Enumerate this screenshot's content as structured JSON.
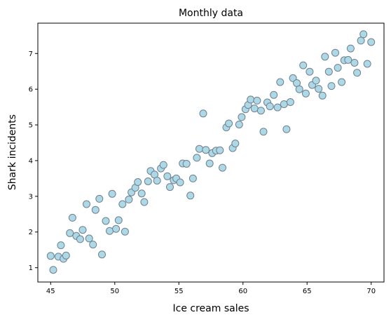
{
  "chart_data": {
    "type": "scatter",
    "title": "Monthly data",
    "xlabel": "Ice cream sales",
    "ylabel": "Shark incidents",
    "xlim": [
      44,
      71
    ],
    "ylim": [
      0.6,
      7.85
    ],
    "xticks": [
      45,
      50,
      55,
      60,
      65,
      70
    ],
    "yticks": [
      1,
      2,
      3,
      4,
      5,
      6,
      7
    ],
    "grid": false,
    "marker_fill": "#add8e6",
    "marker_edge": "#708090",
    "points": [
      [
        45.0,
        1.33
      ],
      [
        45.2,
        0.94
      ],
      [
        45.6,
        1.31
      ],
      [
        45.8,
        1.63
      ],
      [
        46.0,
        1.25
      ],
      [
        46.2,
        1.34
      ],
      [
        46.5,
        1.97
      ],
      [
        46.7,
        2.4
      ],
      [
        47.0,
        1.89
      ],
      [
        47.3,
        1.8
      ],
      [
        47.5,
        2.06
      ],
      [
        47.8,
        2.78
      ],
      [
        48.0,
        1.82
      ],
      [
        48.3,
        1.65
      ],
      [
        48.5,
        2.62
      ],
      [
        48.8,
        2.93
      ],
      [
        49.0,
        1.37
      ],
      [
        49.3,
        2.31
      ],
      [
        49.6,
        2.03
      ],
      [
        49.8,
        3.07
      ],
      [
        50.1,
        2.09
      ],
      [
        50.3,
        2.33
      ],
      [
        50.6,
        2.78
      ],
      [
        50.8,
        2.01
      ],
      [
        51.1,
        2.91
      ],
      [
        51.3,
        3.11
      ],
      [
        51.6,
        3.24
      ],
      [
        51.8,
        3.4
      ],
      [
        52.1,
        3.08
      ],
      [
        52.3,
        2.84
      ],
      [
        52.6,
        3.42
      ],
      [
        52.8,
        3.71
      ],
      [
        53.1,
        3.61
      ],
      [
        53.3,
        3.44
      ],
      [
        53.6,
        3.78
      ],
      [
        53.8,
        3.88
      ],
      [
        54.1,
        3.56
      ],
      [
        54.3,
        3.26
      ],
      [
        54.6,
        3.45
      ],
      [
        54.8,
        3.5
      ],
      [
        55.1,
        3.39
      ],
      [
        55.3,
        3.92
      ],
      [
        55.6,
        3.91
      ],
      [
        55.9,
        3.02
      ],
      [
        56.1,
        3.5
      ],
      [
        56.4,
        4.08
      ],
      [
        56.6,
        4.33
      ],
      [
        56.9,
        5.32
      ],
      [
        57.1,
        4.3
      ],
      [
        57.4,
        3.92
      ],
      [
        57.6,
        4.21
      ],
      [
        57.9,
        4.28
      ],
      [
        58.2,
        4.29
      ],
      [
        58.4,
        3.8
      ],
      [
        58.7,
        4.93
      ],
      [
        58.9,
        5.04
      ],
      [
        59.2,
        4.35
      ],
      [
        59.4,
        4.48
      ],
      [
        59.7,
        5.01
      ],
      [
        59.9,
        5.22
      ],
      [
        60.2,
        5.44
      ],
      [
        60.4,
        5.56
      ],
      [
        60.6,
        5.71
      ],
      [
        60.9,
        5.46
      ],
      [
        61.1,
        5.68
      ],
      [
        61.4,
        5.4
      ],
      [
        61.6,
        4.81
      ],
      [
        61.9,
        5.63
      ],
      [
        62.1,
        5.52
      ],
      [
        62.4,
        5.84
      ],
      [
        62.7,
        5.49
      ],
      [
        62.9,
        6.2
      ],
      [
        63.2,
        5.58
      ],
      [
        63.4,
        4.88
      ],
      [
        63.7,
        5.64
      ],
      [
        63.9,
        6.31
      ],
      [
        64.2,
        6.17
      ],
      [
        64.4,
        6.0
      ],
      [
        64.7,
        6.67
      ],
      [
        64.9,
        5.88
      ],
      [
        65.2,
        6.49
      ],
      [
        65.4,
        6.12
      ],
      [
        65.7,
        6.24
      ],
      [
        65.9,
        6.01
      ],
      [
        66.2,
        5.82
      ],
      [
        66.4,
        6.91
      ],
      [
        66.7,
        6.49
      ],
      [
        66.9,
        6.09
      ],
      [
        67.2,
        7.02
      ],
      [
        67.4,
        6.6
      ],
      [
        67.7,
        6.2
      ],
      [
        67.9,
        6.81
      ],
      [
        68.2,
        6.82
      ],
      [
        68.4,
        7.14
      ],
      [
        68.7,
        6.74
      ],
      [
        68.9,
        6.46
      ],
      [
        69.2,
        7.36
      ],
      [
        69.4,
        7.54
      ],
      [
        69.7,
        6.71
      ],
      [
        70.0,
        7.32
      ]
    ]
  }
}
